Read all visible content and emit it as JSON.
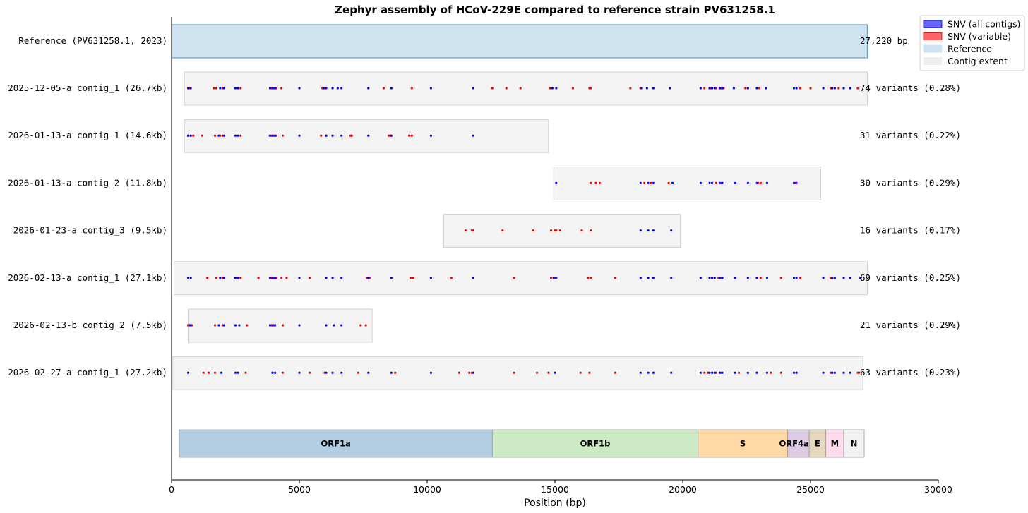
{
  "chart_data": {
    "type": "scatter",
    "title": "Zephyr assembly of HCoV-229E compared to reference strain PV631258.1",
    "xlabel": "Position (bp)",
    "xlim": [
      0,
      30000
    ],
    "xticks": [
      "0",
      "5000",
      "10000",
      "15000",
      "20000",
      "25000",
      "30000"
    ],
    "legend_position": "top-right",
    "legend": [
      {
        "label": "SNV (all contigs)",
        "color": "#0000ff"
      },
      {
        "label": "SNV (variable)",
        "color": "#ff0000"
      },
      {
        "label": "Reference",
        "color": "#cfe2f0"
      },
      {
        "label": "Contig extent",
        "color": "#eeeeee"
      }
    ],
    "reference": {
      "label": "Reference (PV631258.1, 2023)",
      "start": 0,
      "end": 27220,
      "length_label": "27,220 bp"
    },
    "tracks": [
      {
        "label": "2025-12-05-a  contig_1 (26.7kb)",
        "start": 500,
        "end": 27220,
        "summary": "74 variants (0.28%)",
        "blue": [
          650,
          750,
          1900,
          2050,
          2500,
          2600,
          3850,
          3950,
          4050,
          5000,
          5950,
          6050,
          6300,
          6500,
          6650,
          7700,
          8600,
          10150,
          11800,
          14900,
          15050,
          18400,
          18600,
          18850,
          19500,
          20700,
          21050,
          21150,
          21250,
          21450,
          21550,
          22000,
          22550,
          22900,
          23250,
          24350,
          24450,
          25500,
          25850,
          25950,
          26300,
          26550
        ],
        "red": [
          700,
          1650,
          1750,
          2000,
          2600,
          2700,
          3900,
          4000,
          4100,
          4300,
          5900,
          6000,
          8300,
          9400,
          12550,
          13100,
          13650,
          14800,
          15700,
          16350,
          16400,
          17950,
          18350,
          20850,
          21100,
          21300,
          21500,
          21600,
          22450,
          22550,
          23000,
          24600,
          25000,
          25800,
          26100,
          26850
        ]
      },
      {
        "label": "2026-01-13-a  contig_1 (14.6kb)",
        "start": 500,
        "end": 14750,
        "summary": "31 variants (0.22%)",
        "blue": [
          650,
          750,
          1850,
          2050,
          2500,
          2600,
          3850,
          3950,
          4050,
          5000,
          6050,
          6300,
          6650,
          7700,
          8600,
          10150,
          11800
        ],
        "red": [
          650,
          850,
          1200,
          1700,
          1900,
          2000,
          2700,
          3900,
          4000,
          4100,
          4350,
          5850,
          6050,
          7000,
          7050,
          8500,
          8550,
          9300,
          9400
        ]
      },
      {
        "label": "2026-01-13-a  contig_2 (11.8kb)",
        "start": 14950,
        "end": 25400,
        "summary": "30 variants (0.29%)",
        "blue": [
          15050,
          18350,
          18650,
          18850,
          19600,
          20700,
          21050,
          21150,
          21450,
          21550,
          22050,
          22550,
          22900,
          23300,
          24350,
          24450
        ],
        "red": [
          16400,
          16600,
          16750,
          18500,
          18750,
          19450,
          21150,
          21300,
          21500,
          22950,
          23050,
          23300,
          24400
        ]
      },
      {
        "label": "2026-01-23-a  contig_3 (9.5kb)",
        "start": 10650,
        "end": 19900,
        "summary": "16 variants (0.17%)",
        "blue": [
          18350,
          18650,
          18850,
          19550
        ],
        "red": [
          11500,
          11750,
          11800,
          12950,
          14150,
          14850,
          15000,
          15050,
          15200,
          16050,
          16400
        ]
      },
      {
        "label": "2026-02-13-a  contig_1 (27.1kb)",
        "start": 100,
        "end": 27220,
        "summary": "69 variants (0.25%)",
        "blue": [
          650,
          750,
          1900,
          2050,
          2500,
          2600,
          3850,
          3950,
          4050,
          5000,
          6050,
          6300,
          6650,
          7700,
          8600,
          10150,
          11800,
          14950,
          15050,
          18350,
          18650,
          18850,
          19550,
          20700,
          21050,
          21150,
          21250,
          21450,
          21550,
          22050,
          22550,
          22900,
          23300,
          24350,
          24450,
          25500,
          25850,
          25950,
          26300,
          26550,
          26950
        ],
        "red": [
          1400,
          1750,
          2000,
          2600,
          2700,
          3400,
          3900,
          4000,
          4100,
          4300,
          4500,
          5400,
          7650,
          7750,
          9350,
          9450,
          10950,
          13400,
          14850,
          15000,
          16300,
          16400,
          17350,
          21150,
          21400,
          21500,
          22900,
          23050,
          23850,
          24600,
          25800
        ]
      },
      {
        "label": "2026-02-13-b  contig_2 (7.5kb)",
        "start": 650,
        "end": 7850,
        "summary": "21 variants (0.29%)",
        "blue": [
          700,
          750,
          1850,
          2050,
          2500,
          2650,
          3850,
          3950,
          4050,
          5000,
          6050,
          6350,
          6650
        ],
        "red": [
          650,
          800,
          1700,
          2000,
          2950,
          3900,
          4000,
          4350,
          7400,
          7600
        ]
      },
      {
        "label": "2026-02-27-a  contig_1 (27.2kb)",
        "start": 50,
        "end": 27050,
        "summary": "63 variants (0.23%)",
        "blue": [
          650,
          1950,
          2500,
          2600,
          3950,
          4050,
          5000,
          6050,
          6300,
          6650,
          7700,
          8600,
          10150,
          11800,
          15000,
          18350,
          18650,
          18850,
          19550,
          20700,
          21050,
          21150,
          21250,
          21450,
          21550,
          22050,
          22550,
          22900,
          23300,
          24350,
          24450,
          25500,
          25850,
          25950,
          26300,
          26550
        ],
        "red": [
          1250,
          1450,
          1700,
          2900,
          3950,
          4350,
          5400,
          6000,
          7300,
          8750,
          11250,
          11650,
          11750,
          13400,
          14300,
          14750,
          16000,
          16350,
          17350,
          20850,
          21000,
          21300,
          21500,
          22200,
          23450,
          23850,
          24450,
          25800,
          26850,
          26900
        ]
      }
    ],
    "genes": [
      {
        "name": "ORF1a",
        "start": 300,
        "end": 12550,
        "color": "#b3cde3"
      },
      {
        "name": "ORF1b",
        "start": 12550,
        "end": 20600,
        "color": "#ccebc5"
      },
      {
        "name": "S",
        "start": 20600,
        "end": 24100,
        "color": "#fed9a6"
      },
      {
        "name": "ORF4a/b",
        "start": 24100,
        "end": 24950,
        "color": "#decbe4"
      },
      {
        "name": "E",
        "start": 24950,
        "end": 25600,
        "color": "#e5d8bd"
      },
      {
        "name": "M",
        "start": 25600,
        "end": 26300,
        "color": "#fddaec"
      },
      {
        "name": "N",
        "start": 26300,
        "end": 27100,
        "color": "#f2f2f2"
      }
    ]
  }
}
